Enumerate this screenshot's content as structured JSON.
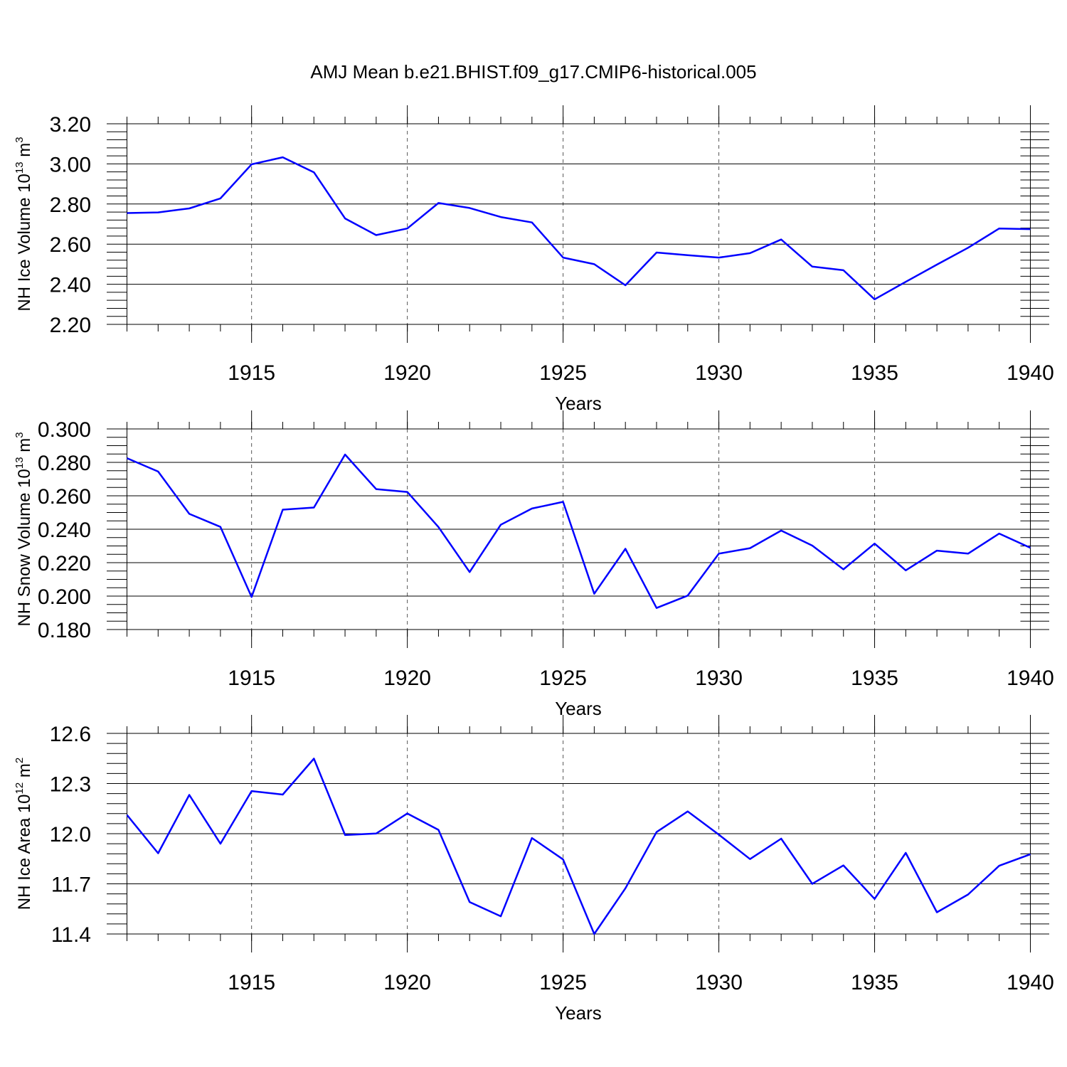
{
  "chart_data": [
    {
      "type": "line",
      "title": "AMJ Mean b.e21.BHIST.f09_g17.CMIP6-historical.005",
      "xlabel": "Years",
      "ylabel": "NH Ice Volume 10",
      "ylabel_exp": "13",
      "ylabel_unit": " m",
      "ylabel_unit_exp": "3",
      "xlim": [
        1911,
        1940
      ],
      "ylim": [
        2.2,
        3.2
      ],
      "yticks": [
        "3.20",
        "3.00",
        "2.80",
        "2.60",
        "2.40",
        "2.20"
      ],
      "xticks": [
        "1915",
        "1920",
        "1925",
        "1930",
        "1935",
        "1940"
      ],
      "line_color": "#0000ff",
      "x": [
        1911,
        1912,
        1913,
        1914,
        1915,
        1916,
        1917,
        1918,
        1919,
        1920,
        1921,
        1922,
        1923,
        1924,
        1925,
        1926,
        1927,
        1928,
        1929,
        1930,
        1931,
        1932,
        1933,
        1934,
        1935,
        1936,
        1937,
        1938,
        1939,
        1940
      ],
      "values": [
        2.755,
        2.758,
        2.778,
        2.828,
        2.998,
        3.033,
        2.958,
        2.728,
        2.645,
        2.678,
        2.805,
        2.78,
        2.735,
        2.708,
        2.533,
        2.5,
        2.395,
        2.558,
        2.545,
        2.533,
        2.555,
        2.623,
        2.488,
        2.47,
        2.325,
        2.412,
        2.498,
        2.582,
        2.678,
        2.675
      ]
    },
    {
      "type": "line",
      "xlabel": "Years",
      "ylabel": "NH Snow Volume 10",
      "ylabel_exp": "13",
      "ylabel_unit": " m",
      "ylabel_unit_exp": "3",
      "xlim": [
        1911,
        1940
      ],
      "ylim": [
        0.18,
        0.3
      ],
      "yticks": [
        "0.300",
        "0.280",
        "0.260",
        "0.240",
        "0.220",
        "0.200",
        "0.180"
      ],
      "xticks": [
        "1915",
        "1920",
        "1925",
        "1930",
        "1935",
        "1940"
      ],
      "line_color": "#0000ff",
      "x": [
        1911,
        1912,
        1913,
        1914,
        1915,
        1916,
        1917,
        1918,
        1919,
        1920,
        1921,
        1922,
        1923,
        1924,
        1925,
        1926,
        1927,
        1928,
        1929,
        1930,
        1931,
        1932,
        1933,
        1934,
        1935,
        1936,
        1937,
        1938,
        1939,
        1940
      ],
      "values": [
        0.2825,
        0.2745,
        0.2492,
        0.2414,
        0.1995,
        0.2517,
        0.253,
        0.2847,
        0.264,
        0.2623,
        0.2413,
        0.2144,
        0.2427,
        0.2524,
        0.2564,
        0.2014,
        0.2283,
        0.1929,
        0.2003,
        0.2254,
        0.2287,
        0.2392,
        0.2302,
        0.216,
        0.2314,
        0.2154,
        0.2272,
        0.2254,
        0.2374,
        0.2289
      ]
    },
    {
      "type": "line",
      "xlabel": "Years",
      "ylabel": "NH Ice Area 10",
      "ylabel_exp": "12",
      "ylabel_unit": " m",
      "ylabel_unit_exp": "2",
      "xlim": [
        1911,
        1940
      ],
      "ylim": [
        11.4,
        12.6
      ],
      "yticks": [
        "12.6",
        "12.3",
        "12.0",
        "11.7",
        "11.4"
      ],
      "xticks": [
        "1915",
        "1920",
        "1925",
        "1930",
        "1935",
        "1940"
      ],
      "line_color": "#0000ff",
      "x": [
        1911,
        1912,
        1913,
        1914,
        1915,
        1916,
        1917,
        1918,
        1919,
        1920,
        1921,
        1922,
        1923,
        1924,
        1925,
        1926,
        1927,
        1928,
        1929,
        1930,
        1931,
        1932,
        1933,
        1934,
        1935,
        1936,
        1937,
        1938,
        1939,
        1940
      ],
      "values": [
        12.112,
        11.883,
        12.232,
        11.94,
        12.255,
        12.234,
        12.449,
        11.992,
        12.001,
        12.121,
        12.023,
        11.591,
        11.506,
        11.974,
        11.846,
        11.4,
        11.673,
        12.01,
        12.133,
        11.994,
        11.848,
        11.97,
        11.7,
        11.81,
        11.61,
        11.885,
        11.53,
        11.636,
        11.808,
        11.877
      ]
    }
  ]
}
